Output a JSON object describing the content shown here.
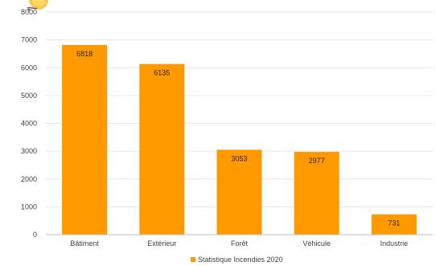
{
  "chart_data": {
    "type": "bar",
    "categories": [
      "Bâtiment",
      "Extérieur",
      "Forêt",
      "Véhicule",
      "Industrie"
    ],
    "series": [
      {
        "name": "Statistique Incendies 2020",
        "values": [
          6818,
          6135,
          3053,
          2977,
          731
        ]
      }
    ],
    "data_labels": [
      "6818",
      "6135",
      "3053",
      "2977",
      "731"
    ],
    "ylim": [
      0,
      8000
    ],
    "yticks": [
      0,
      1000,
      2000,
      3000,
      4000,
      5000,
      6000,
      7000,
      8000
    ],
    "ytick_labels": [
      "0",
      "1000",
      "2000",
      "3000",
      "4000",
      "5000",
      "6000",
      "7000",
      "8000"
    ],
    "grid": true,
    "legend_position": "bottom",
    "bar_color": "#FF9900",
    "grid_color": "#E6E6E6",
    "axis_color": "#BFBFBF"
  },
  "logo": {
    "icon": "sun-logo-icon"
  }
}
